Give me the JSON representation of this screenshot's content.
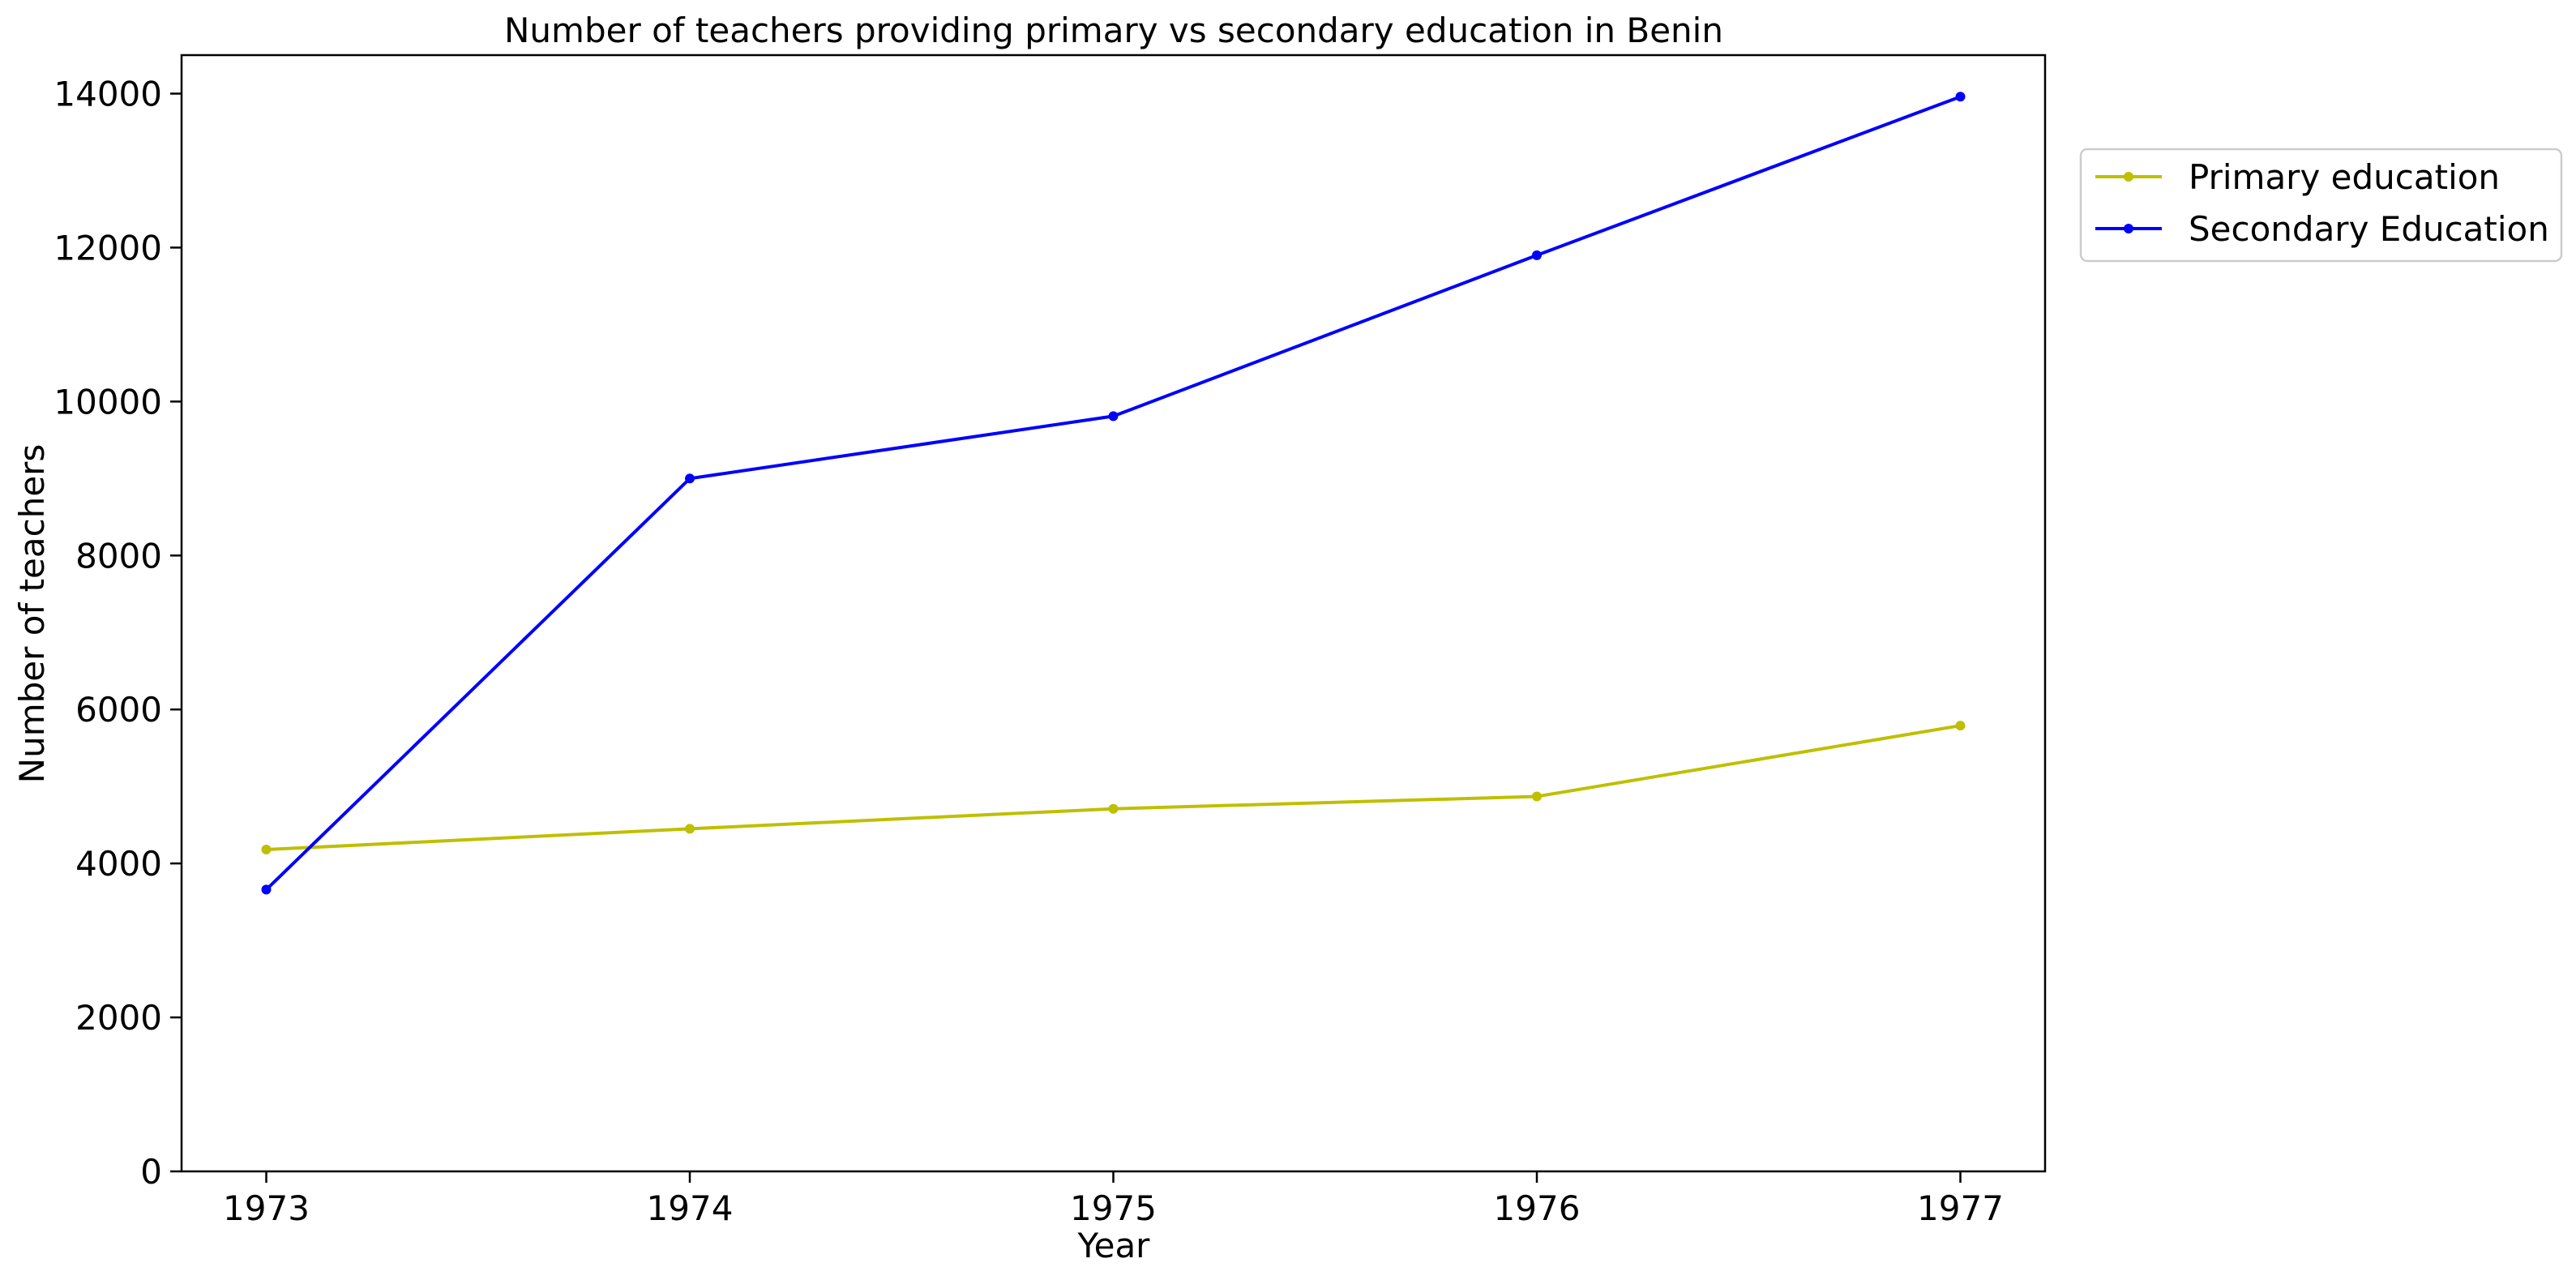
{
  "chart_data": {
    "type": "line",
    "title": "Number of teachers providing primary vs secondary education in Benin",
    "xlabel": "Year",
    "ylabel": "Number of teachers",
    "x": [
      1973,
      1974,
      1975,
      1976,
      1977
    ],
    "xlim": [
      1972.8,
      1977.2
    ],
    "ylim": [
      0,
      14500
    ],
    "yticks": [
      0,
      2000,
      4000,
      6000,
      8000,
      10000,
      12000,
      14000
    ],
    "grid": false,
    "legend_position": "outside-top-right",
    "series": [
      {
        "name": "Primary education",
        "color": "#bfbf00",
        "marker": "circle",
        "values": [
          4180,
          4450,
          4710,
          4870,
          5790
        ]
      },
      {
        "name": "Secondary Education",
        "color": "#0000ff",
        "marker": "circle",
        "values": [
          3660,
          9000,
          9810,
          11900,
          13960
        ]
      }
    ]
  }
}
